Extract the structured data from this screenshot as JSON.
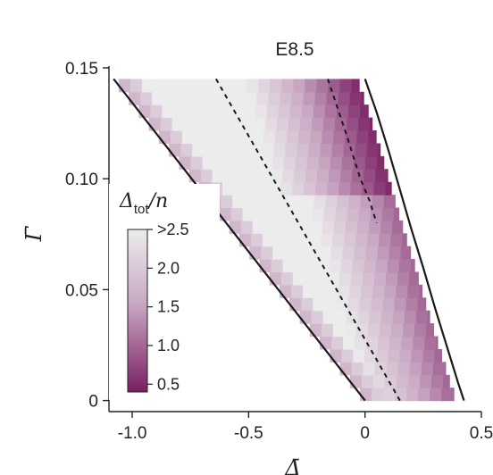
{
  "chart_data": {
    "type": "heatmap",
    "title": "E8.5",
    "xlabel": "Δ̄",
    "ylabel": "Γ̄",
    "xlim": [
      -1.1,
      0.5
    ],
    "ylim": [
      -0.005,
      0.15
    ],
    "x_ticks": [
      "-1.0",
      "-0.5",
      "0",
      "0.5"
    ],
    "x_tick_values": [
      -1.0,
      -0.5,
      0,
      0.5
    ],
    "y_ticks": [
      "0",
      "0.05",
      "0.10",
      "0.15"
    ],
    "y_tick_values": [
      0,
      0.05,
      0.1,
      0.15
    ],
    "colorbar": {
      "title_main": "Δ",
      "title_sub": "tot",
      "title_tail": "/n",
      "ticks": [
        ">2.5",
        "2.0",
        "1.5",
        "1.0",
        "0.5"
      ],
      "tick_values": [
        2.5,
        2.0,
        1.5,
        1.0,
        0.5
      ],
      "range": [
        0.4,
        2.5
      ],
      "color_low": "#7a1f63",
      "color_high": "#ececec"
    },
    "boundary_left": {
      "x": [
        -1.08,
        0.0
      ],
      "y": [
        0.145,
        0.0
      ]
    },
    "boundary_right": {
      "x": [
        0.0,
        0.05,
        0.1,
        0.15,
        0.2,
        0.25,
        0.3,
        0.35,
        0.4,
        0.425
      ],
      "y": [
        0.145,
        0.13,
        0.113,
        0.095,
        0.077,
        0.06,
        0.042,
        0.025,
        0.008,
        0.0
      ]
    },
    "dashed_lines": [
      {
        "x": [
          -0.64,
          0.15
        ],
        "y": [
          0.145,
          0.0
        ]
      },
      {
        "x": [
          -0.16,
          -0.08,
          -0.02,
          0.02,
          0.05
        ],
        "y": [
          0.145,
          0.12,
          0.1,
          0.09,
          0.08
        ]
      }
    ],
    "colors": {
      "axis": "#222222",
      "boundary": "#1a1a1a"
    }
  }
}
